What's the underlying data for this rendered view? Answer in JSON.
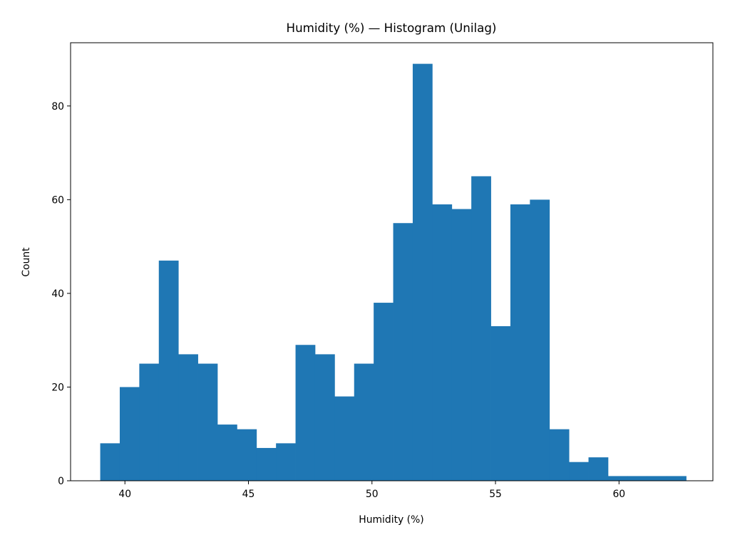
{
  "chart_data": {
    "type": "bar",
    "title": "Humidity (%) — Histogram (Unilag)",
    "xlabel": "Humidity (%)",
    "ylabel": "Count",
    "bins": {
      "start": 39.0,
      "width": 0.7906,
      "counts": [
        8,
        20,
        25,
        47,
        27,
        25,
        12,
        11,
        7,
        8,
        29,
        27,
        18,
        25,
        38,
        55,
        89,
        59,
        58,
        65,
        33,
        59,
        60,
        11,
        4,
        5,
        1,
        1,
        1,
        1
      ]
    },
    "xlim": [
      37.8,
      63.8
    ],
    "ylim": [
      0,
      93.5
    ],
    "xticks": [
      40,
      45,
      50,
      55,
      60
    ],
    "yticks": [
      0,
      20,
      40,
      60,
      80
    ],
    "bar_color": "#1f77b4",
    "grid": false,
    "legend": "none"
  }
}
